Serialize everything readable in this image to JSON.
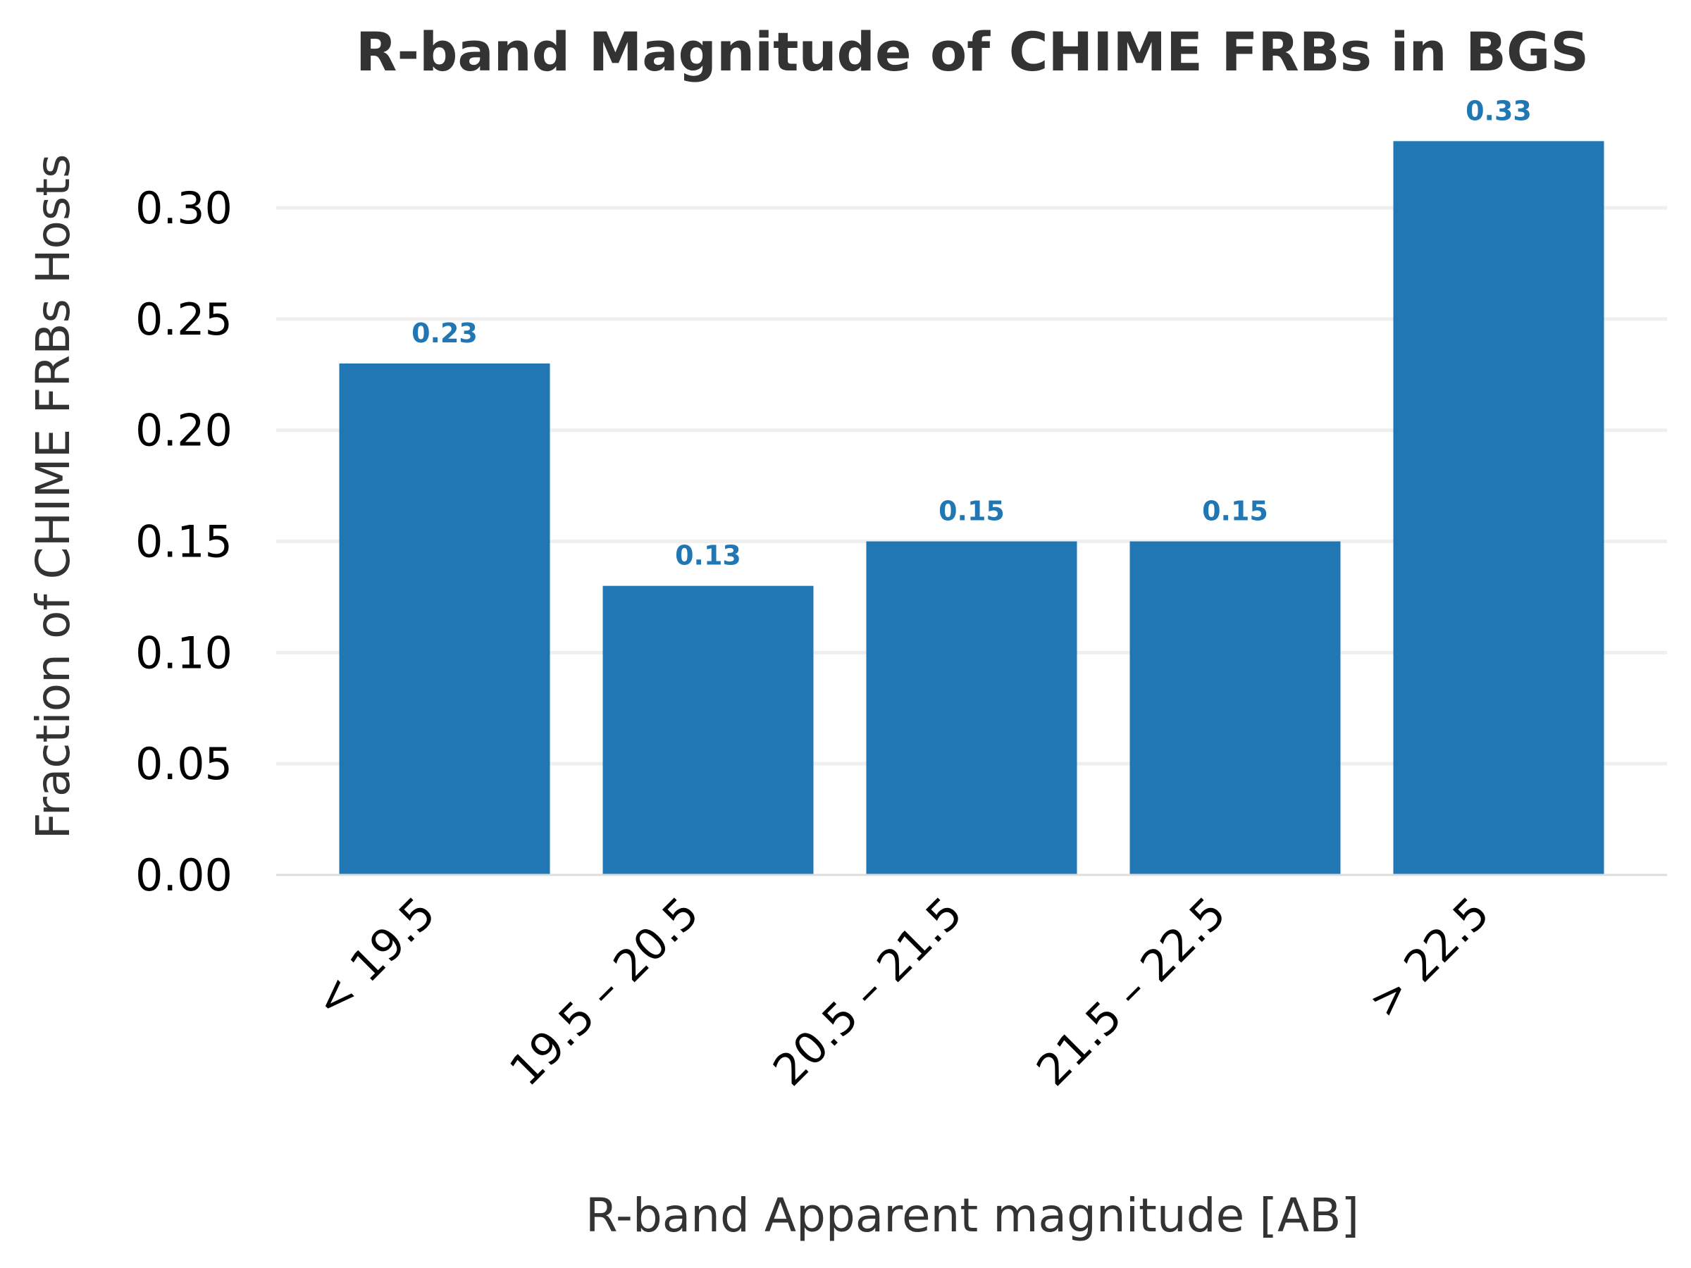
{
  "chart_data": {
    "type": "bar",
    "title": "R-band Magnitude of CHIME FRBs in BGS",
    "xlabel": "R-band Apparent magnitude [AB]",
    "ylabel": "Fraction of CHIME FRBs Hosts",
    "categories": [
      "< 19.5",
      "19.5 – 20.5",
      "20.5 – 21.5",
      "21.5 – 22.5",
      "> 22.5"
    ],
    "values": [
      0.23,
      0.13,
      0.15,
      0.15,
      0.33
    ],
    "value_labels": [
      "0.23",
      "0.13",
      "0.15",
      "0.15",
      "0.33"
    ],
    "ylim": [
      0,
      0.345
    ],
    "yticks": [
      0.0,
      0.05,
      0.1,
      0.15,
      0.2,
      0.25,
      0.3
    ],
    "ytick_labels": [
      "0.00",
      "0.05",
      "0.10",
      "0.15",
      "0.20",
      "0.25",
      "0.30"
    ],
    "grid": "horizontal",
    "bar_color": "#2077b4",
    "grid_color": "#efefef",
    "axis_color": "#dddddd"
  }
}
